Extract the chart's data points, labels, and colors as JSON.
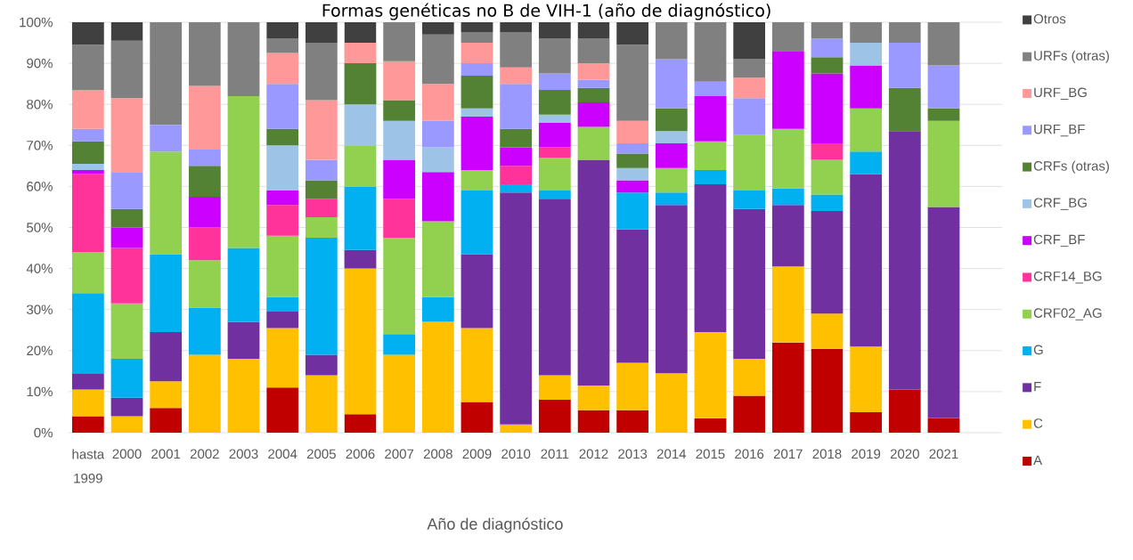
{
  "chart_data": {
    "type": "bar",
    "stacked": true,
    "title": "Formas genéticas no B de VIH-1 (año de diagnóstico)",
    "xlabel": "Año de diagnóstico",
    "categories": [
      "hasta 1999",
      "2000",
      "2001",
      "2002",
      "2003",
      "2004",
      "2005",
      "2006",
      "2007",
      "2008",
      "2009",
      "2010",
      "2011",
      "2012",
      "2013",
      "2014",
      "2015",
      "2016",
      "2017",
      "2018",
      "2019",
      "2020",
      "2021"
    ],
    "series": [
      {
        "name": "A",
        "color": "#c00000",
        "values": [
          4,
          null,
          6,
          null,
          null,
          11,
          null,
          4.5,
          null,
          null,
          7.5,
          null,
          8,
          5.5,
          5.5,
          null,
          3.5,
          9,
          22,
          20.5,
          5,
          10.5,
          3.5
        ]
      },
      {
        "name": "C",
        "color": "#ffc000",
        "values": [
          6.5,
          4,
          6.5,
          19,
          18,
          14.5,
          14,
          35.5,
          19,
          27,
          18,
          2,
          6,
          6,
          11.5,
          14.5,
          21,
          9,
          18.5,
          8.5,
          16,
          null,
          null
        ]
      },
      {
        "name": "F",
        "color": "#7030a0",
        "values": [
          4,
          4.5,
          12,
          null,
          9,
          4,
          5,
          4.5,
          null,
          null,
          18,
          56.5,
          43,
          55,
          32.5,
          41,
          36,
          36.5,
          15,
          25,
          42,
          63,
          51.5
        ]
      },
      {
        "name": "G",
        "color": "#00b0f0",
        "values": [
          19.5,
          9.5,
          19,
          11.5,
          18,
          3.5,
          28.5,
          15.5,
          5,
          6,
          15.5,
          2,
          2,
          null,
          9,
          3,
          3.5,
          4.5,
          4,
          4,
          5.5,
          null,
          null
        ]
      },
      {
        "name": "CRF02_AG",
        "color": "#92d050",
        "values": [
          10,
          13.5,
          25,
          11.5,
          37,
          15,
          5,
          10,
          23.5,
          18.5,
          5,
          null,
          8,
          8,
          null,
          6,
          7,
          13.5,
          14.5,
          8.5,
          10.5,
          null,
          21
        ]
      },
      {
        "name": "CRF14_BG",
        "color": "#ff3399",
        "values": [
          19,
          13.5,
          null,
          8,
          null,
          7.5,
          4.5,
          null,
          9.5,
          null,
          null,
          4.5,
          2.5,
          null,
          null,
          null,
          null,
          null,
          null,
          4,
          null,
          null,
          null
        ]
      },
      {
        "name": "CRF_BF",
        "color": "#cc00ff",
        "values": [
          1,
          5,
          null,
          7.5,
          null,
          3.5,
          null,
          null,
          9.5,
          12,
          13,
          4.5,
          6,
          6,
          3,
          6,
          11,
          null,
          19,
          17,
          10.5,
          null,
          null
        ]
      },
      {
        "name": "CRF_BG",
        "color": "#9dc3e6",
        "values": [
          1.5,
          null,
          null,
          null,
          null,
          11,
          null,
          10,
          9.5,
          6,
          2,
          null,
          2,
          null,
          3,
          3,
          null,
          null,
          null,
          null,
          5.5,
          null,
          null
        ]
      },
      {
        "name": "CRFs (otras)",
        "color": "#548235",
        "values": [
          5.5,
          4.5,
          null,
          7.5,
          null,
          4,
          4.5,
          10,
          5,
          null,
          8,
          4.5,
          6,
          3.5,
          3.5,
          5.5,
          null,
          null,
          null,
          4,
          null,
          10.5,
          3
        ]
      },
      {
        "name": "URF_BF",
        "color": "#9999ff",
        "values": [
          3,
          9,
          6.5,
          4,
          null,
          11,
          5,
          null,
          null,
          6.5,
          3,
          11,
          4,
          2,
          2.5,
          12,
          3.5,
          9,
          null,
          4.5,
          null,
          11,
          10.5
        ]
      },
      {
        "name": "URF_BG",
        "color": "#ff9999",
        "values": [
          9.5,
          18,
          null,
          15.5,
          null,
          7.5,
          14.5,
          5,
          9.5,
          9,
          5,
          4,
          null,
          4,
          5.5,
          null,
          null,
          5,
          null,
          null,
          null,
          null,
          null
        ]
      },
      {
        "name": "URFs (otras)",
        "color": "#808080",
        "values": [
          11,
          14,
          25,
          15.5,
          18,
          3.5,
          14,
          null,
          9.5,
          12,
          2.5,
          8.5,
          8.5,
          6,
          18.5,
          9,
          14.5,
          4.5,
          7,
          4,
          5,
          5,
          10.5
        ]
      },
      {
        "name": "Otros",
        "color": "#404040",
        "values": [
          5.5,
          4.5,
          null,
          null,
          null,
          4,
          5,
          5,
          null,
          3,
          2.5,
          2.5,
          4,
          4,
          5.5,
          null,
          null,
          9,
          null,
          null,
          null,
          null,
          null
        ]
      }
    ],
    "ylim": [
      0,
      100
    ],
    "yticks": [
      {
        "value": 0,
        "label": "0%"
      },
      {
        "value": 10,
        "label": "10%"
      },
      {
        "value": 20,
        "label": "20%"
      },
      {
        "value": 30,
        "label": "30%"
      },
      {
        "value": 40,
        "label": "40%"
      },
      {
        "value": 50,
        "label": "50%"
      },
      {
        "value": 60,
        "label": "60%"
      },
      {
        "value": 70,
        "label": "70%"
      },
      {
        "value": 80,
        "label": "80%"
      },
      {
        "value": 90,
        "label": "90%"
      },
      {
        "value": 100,
        "label": "100%"
      }
    ],
    "grid": "y",
    "legend": "right"
  }
}
